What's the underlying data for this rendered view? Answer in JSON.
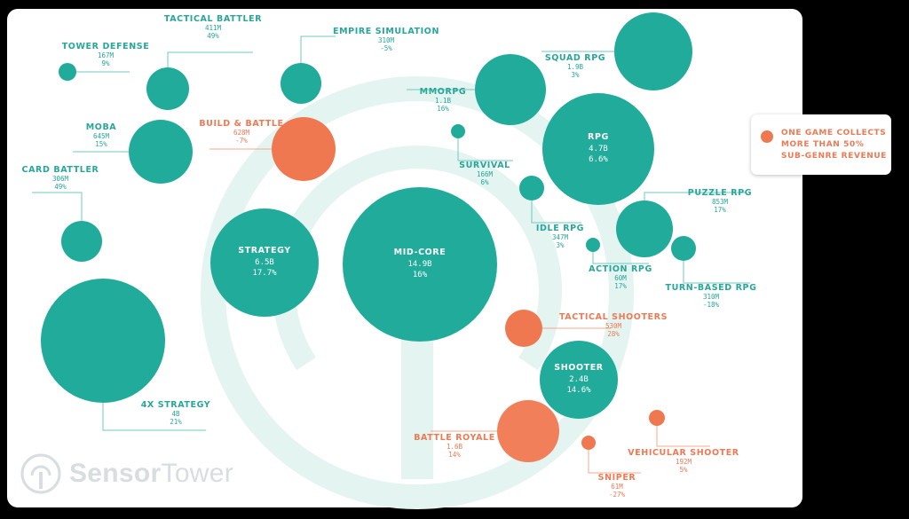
{
  "colors": {
    "teal": "#21ab9b",
    "orange": "#f07851",
    "label_teal": "#27a699",
    "label_orange": "#ee7a55",
    "watermark": "#e3f4f1",
    "leader_teal": "#6fcabf",
    "leader_orange": "#f3a88f",
    "panel": "#ffffff"
  },
  "legend": {
    "text": "ONE GAME COLLECTS MORE THAN 50% SUB-GENRE REVENUE"
  },
  "logo": {
    "icon": "sensor-tower-logo-icon",
    "brand_bold": "Sensor",
    "brand_regular": "Tower"
  },
  "chart_data": {
    "type": "bubble",
    "title": "",
    "size_measure": "revenue",
    "highlight_meaning": "One game collects more than 50% sub-genre revenue",
    "bubbles": [
      {
        "id": "mid-core",
        "name": "MID-CORE",
        "revenue": "14.9B",
        "change": "16%",
        "value": 14.9,
        "highlight": false,
        "parent": null
      },
      {
        "id": "strategy",
        "name": "STRATEGY",
        "revenue": "6.5B",
        "change": "17.7%",
        "value": 6.5,
        "highlight": false,
        "parent": "mid-core"
      },
      {
        "id": "rpg",
        "name": "RPG",
        "revenue": "4.7B",
        "change": "6.6%",
        "value": 4.7,
        "highlight": false,
        "parent": "mid-core"
      },
      {
        "id": "shooter",
        "name": "SHOOTER",
        "revenue": "2.4B",
        "change": "14.6%",
        "value": 2.4,
        "highlight": false,
        "parent": "mid-core"
      },
      {
        "id": "4x-strategy",
        "name": "4X STRATEGY",
        "revenue": "4B",
        "change": "21%",
        "value": 4.0,
        "highlight": false,
        "parent": "strategy"
      },
      {
        "id": "moba",
        "name": "MOBA",
        "revenue": "645M",
        "change": "15%",
        "value": 0.645,
        "highlight": false,
        "parent": "strategy"
      },
      {
        "id": "build-battle",
        "name": "BUILD & BATTLE",
        "revenue": "628M",
        "change": "-7%",
        "value": 0.628,
        "highlight": true,
        "parent": "strategy"
      },
      {
        "id": "tactical-battler",
        "name": "TACTICAL BATTLER",
        "revenue": "411M",
        "change": "49%",
        "value": 0.411,
        "highlight": false,
        "parent": "strategy"
      },
      {
        "id": "empire-simulation",
        "name": "EMPIRE SIMULATION",
        "revenue": "310M",
        "change": "-5%",
        "value": 0.31,
        "highlight": false,
        "parent": "strategy"
      },
      {
        "id": "card-battler",
        "name": "CARD BATTLER",
        "revenue": "306M",
        "change": "49%",
        "value": 0.306,
        "highlight": false,
        "parent": "strategy"
      },
      {
        "id": "tower-defense",
        "name": "TOWER DEFENSE",
        "revenue": "167M",
        "change": "9%",
        "value": 0.167,
        "highlight": false,
        "parent": "strategy"
      },
      {
        "id": "squad-rpg",
        "name": "SQUAD RPG",
        "revenue": "1.9B",
        "change": "3%",
        "value": 1.9,
        "highlight": false,
        "parent": "rpg"
      },
      {
        "id": "mmorpg",
        "name": "MMORPG",
        "revenue": "1.1B",
        "change": "16%",
        "value": 1.1,
        "highlight": false,
        "parent": "rpg"
      },
      {
        "id": "puzzle-rpg",
        "name": "PUZZLE RPG",
        "revenue": "853M",
        "change": "17%",
        "value": 0.853,
        "highlight": false,
        "parent": "rpg"
      },
      {
        "id": "idle-rpg",
        "name": "IDLE RPG",
        "revenue": "347M",
        "change": "3%",
        "value": 0.347,
        "highlight": false,
        "parent": "rpg"
      },
      {
        "id": "turn-based-rpg",
        "name": "TURN-BASED RPG",
        "revenue": "310M",
        "change": "-18%",
        "value": 0.31,
        "highlight": false,
        "parent": "rpg"
      },
      {
        "id": "survival",
        "name": "SURVIVAL",
        "revenue": "166M",
        "change": "6%",
        "value": 0.166,
        "highlight": false,
        "parent": "rpg"
      },
      {
        "id": "action-rpg",
        "name": "ACTION RPG",
        "revenue": "60M",
        "change": "17%",
        "value": 0.06,
        "highlight": false,
        "parent": "rpg"
      },
      {
        "id": "battle-royale",
        "name": "BATTLE ROYALE",
        "revenue": "1.6B",
        "change": "14%",
        "value": 1.6,
        "highlight": true,
        "parent": "shooter"
      },
      {
        "id": "tactical-shooters",
        "name": "TACTICAL SHOOTERS",
        "revenue": "530M",
        "change": "28%",
        "value": 0.53,
        "highlight": true,
        "parent": "shooter"
      },
      {
        "id": "vehicular-shooter",
        "name": "VEHICULAR SHOOTER",
        "revenue": "192M",
        "change": "5%",
        "value": 0.192,
        "highlight": true,
        "parent": "shooter"
      },
      {
        "id": "sniper",
        "name": "SNIPER",
        "revenue": "61M",
        "change": "-27%",
        "value": 0.061,
        "highlight": true,
        "parent": "shooter"
      }
    ]
  }
}
